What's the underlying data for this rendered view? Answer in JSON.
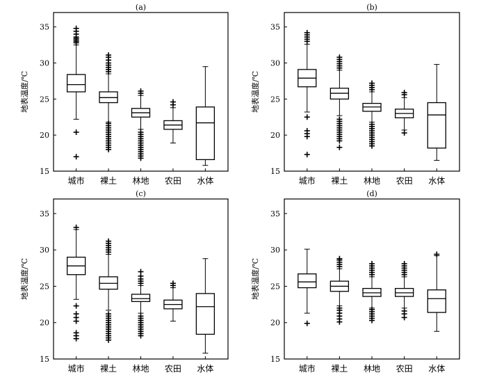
{
  "chart_data": [
    {
      "type": "box",
      "title": "(a)",
      "ylabel": "地表温度/℃",
      "ylim": [
        15,
        37
      ],
      "yticks": [
        15,
        20,
        25,
        30,
        35
      ],
      "categories": [
        "城市",
        "裸土",
        "林地",
        "农田",
        "水体"
      ],
      "boxes": [
        {
          "q1": 26.0,
          "median": 27.0,
          "q3": 28.4,
          "whisker_low": 22.2,
          "whisker_high": 32.5,
          "outliers": [
            17.0,
            20.4,
            32.8,
            33.0,
            33.2,
            33.4,
            33.6,
            34.0,
            34.4,
            34.8
          ]
        },
        {
          "q1": 24.5,
          "median": 25.2,
          "q3": 26.0,
          "whisker_low": 21.8,
          "whisker_high": 28.5,
          "outliers": [
            18.0,
            18.3,
            18.6,
            18.9,
            19.2,
            19.5,
            19.8,
            20.1,
            20.4,
            20.7,
            21.0,
            21.3,
            21.6,
            28.8,
            29.1,
            29.4,
            29.7,
            30.0,
            30.4,
            30.8,
            31.1
          ]
        },
        {
          "q1": 22.5,
          "median": 23.1,
          "q3": 23.7,
          "whisker_low": 20.8,
          "whisker_high": 25.5,
          "outliers": [
            16.8,
            17.1,
            17.4,
            17.7,
            18.0,
            18.3,
            18.6,
            18.9,
            19.2,
            19.5,
            19.8,
            20.1,
            20.4,
            25.8,
            26.1
          ]
        },
        {
          "q1": 20.8,
          "median": 21.4,
          "q3": 22.0,
          "whisker_low": 18.9,
          "whisker_high": 23.8,
          "outliers": [
            24.2,
            24.6
          ]
        },
        {
          "q1": 16.6,
          "median": 21.7,
          "q3": 23.9,
          "whisker_low": 15.8,
          "whisker_high": 29.5,
          "outliers": []
        }
      ]
    },
    {
      "type": "box",
      "title": "(b)",
      "ylabel": "地表温度/℃",
      "ylim": [
        15,
        37
      ],
      "yticks": [
        15,
        20,
        25,
        30,
        35
      ],
      "categories": [
        "城市",
        "裸土",
        "林地",
        "农田",
        "水体"
      ],
      "boxes": [
        {
          "q1": 26.7,
          "median": 27.9,
          "q3": 29.1,
          "whisker_low": 23.2,
          "whisker_high": 32.6,
          "outliers": [
            17.3,
            19.8,
            20.2,
            20.6,
            22.5,
            33.0,
            33.3,
            33.6,
            33.9,
            34.2
          ]
        },
        {
          "q1": 25.0,
          "median": 25.8,
          "q3": 26.5,
          "whisker_low": 22.7,
          "whisker_high": 29.0,
          "outliers": [
            18.3,
            19.2,
            19.5,
            19.8,
            20.1,
            20.4,
            20.7,
            21.0,
            21.3,
            21.6,
            21.9,
            22.2,
            29.3,
            29.6,
            29.9,
            30.2,
            30.5,
            30.8
          ]
        },
        {
          "q1": 23.3,
          "median": 23.9,
          "q3": 24.4,
          "whisker_low": 21.8,
          "whisker_high": 26.0,
          "outliers": [
            18.5,
            18.8,
            19.1,
            19.4,
            19.7,
            20.0,
            20.3,
            20.6,
            20.9,
            21.2,
            21.5,
            26.3,
            26.6,
            26.9,
            27.2
          ]
        },
        {
          "q1": 22.4,
          "median": 23.0,
          "q3": 23.6,
          "whisker_low": 20.7,
          "whisker_high": 25.2,
          "outliers": [
            20.3,
            25.6,
            25.9
          ]
        },
        {
          "q1": 18.2,
          "median": 22.8,
          "q3": 24.5,
          "whisker_low": 16.5,
          "whisker_high": 29.8,
          "outliers": []
        }
      ]
    },
    {
      "type": "box",
      "title": "(c)",
      "ylabel": "地表温度/℃",
      "ylim": [
        15,
        37
      ],
      "yticks": [
        15,
        20,
        25,
        30,
        35
      ],
      "categories": [
        "城市",
        "裸土",
        "林地",
        "农田",
        "水体"
      ],
      "boxes": [
        {
          "q1": 26.6,
          "median": 27.8,
          "q3": 29.0,
          "whisker_low": 23.2,
          "whisker_high": 32.8,
          "outliers": [
            17.8,
            18.2,
            18.6,
            20.2,
            20.7,
            21.2,
            22.3,
            33.1
          ]
        },
        {
          "q1": 24.6,
          "median": 25.4,
          "q3": 26.3,
          "whisker_low": 21.7,
          "whisker_high": 29.4,
          "outliers": [
            17.6,
            17.9,
            18.2,
            18.5,
            18.8,
            19.1,
            19.4,
            19.7,
            20.0,
            20.3,
            20.6,
            20.9,
            21.2,
            29.7,
            30.0,
            30.3,
            30.6,
            30.9,
            31.2
          ]
        },
        {
          "q1": 22.9,
          "median": 23.3,
          "q3": 23.9,
          "whisker_low": 21.3,
          "whisker_high": 25.1,
          "outliers": [
            18.2,
            18.5,
            18.8,
            19.1,
            19.4,
            19.7,
            20.0,
            20.3,
            20.6,
            20.9,
            25.4,
            25.7,
            26.0,
            26.4,
            27.0
          ]
        },
        {
          "q1": 21.9,
          "median": 22.5,
          "q3": 23.1,
          "whisker_low": 20.2,
          "whisker_high": 24.8,
          "outliers": [
            25.1,
            25.4
          ]
        },
        {
          "q1": 18.4,
          "median": 22.2,
          "q3": 24.0,
          "whisker_low": 15.8,
          "whisker_high": 28.8,
          "outliers": []
        }
      ]
    },
    {
      "type": "box",
      "title": "(d)",
      "ylabel": "地表温度/℃",
      "ylim": [
        15,
        37
      ],
      "yticks": [
        15,
        20,
        25,
        30,
        35
      ],
      "categories": [
        "城市",
        "裸土",
        "林地",
        "农田",
        "水体"
      ],
      "boxes": [
        {
          "q1": 24.8,
          "median": 25.6,
          "q3": 26.7,
          "whisker_low": 21.3,
          "whisker_high": 30.1,
          "outliers": [
            19.9
          ]
        },
        {
          "q1": 24.3,
          "median": 25.0,
          "q3": 25.7,
          "whisker_low": 22.3,
          "whisker_high": 27.4,
          "outliers": [
            20.1,
            20.5,
            20.9,
            21.3,
            21.7,
            22.0,
            27.7,
            28.0,
            28.3,
            28.6,
            28.8
          ]
        },
        {
          "q1": 23.6,
          "median": 24.1,
          "q3": 24.7,
          "whisker_low": 22.0,
          "whisker_high": 26.3,
          "outliers": [
            20.3,
            20.6,
            20.9,
            21.2,
            21.5,
            21.8,
            26.6,
            26.9,
            27.2,
            27.5,
            27.8,
            28.1
          ]
        },
        {
          "q1": 23.6,
          "median": 24.1,
          "q3": 24.7,
          "whisker_low": 22.0,
          "whisker_high": 26.3,
          "outliers": [
            20.7,
            21.2,
            21.6,
            26.6,
            26.9,
            27.2,
            27.5,
            27.8,
            28.1
          ]
        },
        {
          "q1": 21.4,
          "median": 23.3,
          "q3": 24.5,
          "whisker_low": 18.8,
          "whisker_high": 29.2,
          "outliers": [
            29.4
          ]
        }
      ]
    }
  ]
}
